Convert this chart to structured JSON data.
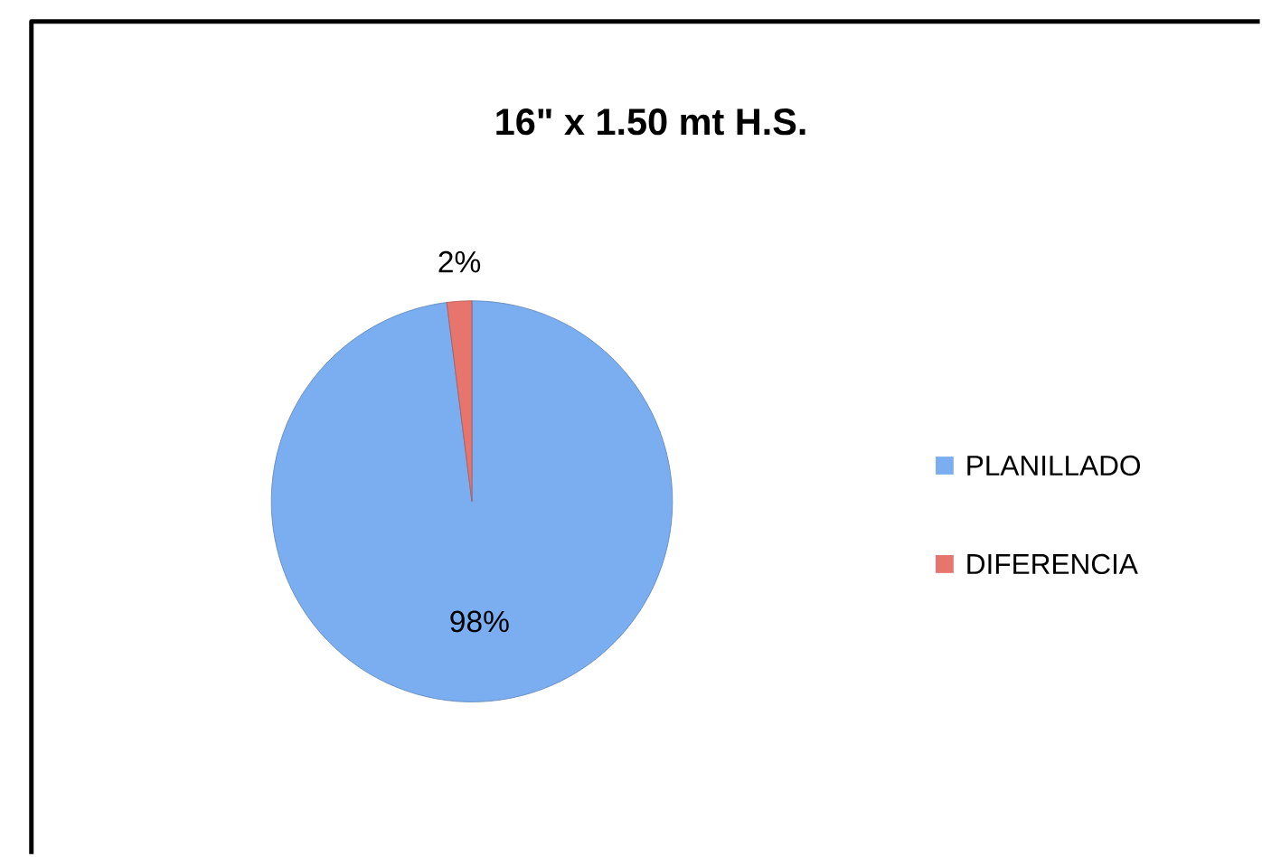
{
  "chart_data": {
    "type": "pie",
    "title": "16\" x 1.50 mt H.S.",
    "categories": [
      "PLANILLADO",
      "DIFERENCIA"
    ],
    "values": [
      98,
      2
    ],
    "colors": [
      "#7aaef0",
      "#e8746e"
    ],
    "value_labels": [
      "98%",
      "2%"
    ],
    "legend": "right"
  }
}
